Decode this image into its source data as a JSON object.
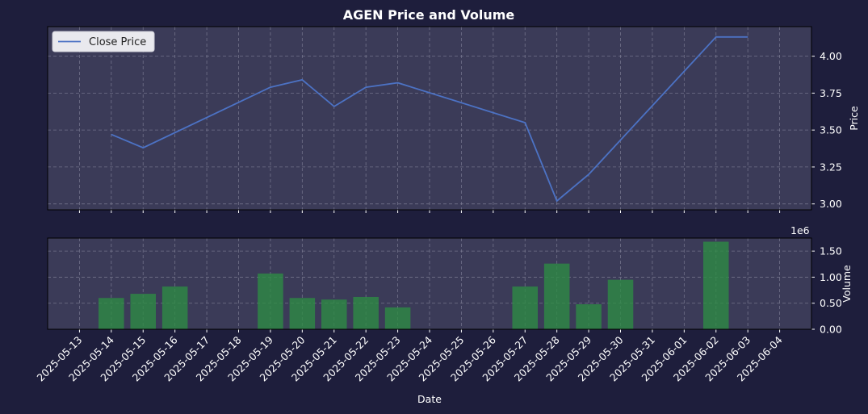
{
  "chart_data": [
    {
      "type": "line",
      "title": "AGEN Price and Volume",
      "ylabel": "Price",
      "ylim": [
        2.96,
        4.2
      ],
      "yticks": [
        3.0,
        3.25,
        3.5,
        3.75,
        4.0
      ],
      "grid": true,
      "legend": {
        "placement": "top-left",
        "entries": [
          "Close Price"
        ]
      },
      "colors": {
        "line": "#4c72c4",
        "panel_bg": "#3b3b58",
        "page_bg": "#1e1e3c"
      },
      "series": [
        {
          "name": "Close Price",
          "x": [
            "2025-05-14",
            "2025-05-15",
            "2025-05-19",
            "2025-05-20",
            "2025-05-21",
            "2025-05-22",
            "2025-05-23",
            "2025-05-27",
            "2025-05-28",
            "2025-05-29",
            "2025-06-02",
            "2025-06-03"
          ],
          "y": [
            3.47,
            3.38,
            3.79,
            3.84,
            3.66,
            3.79,
            3.82,
            3.55,
            3.02,
            3.2,
            4.13,
            4.13
          ]
        }
      ]
    },
    {
      "type": "bar",
      "xlabel": "Date",
      "ylabel": "Volume",
      "scale_label": "1e6",
      "ylim": [
        0,
        1.75
      ],
      "yticks": [
        0.0,
        0.5,
        1.0,
        1.5
      ],
      "grid": true,
      "colors": {
        "bar": "#2e8b45"
      },
      "x": [
        "2025-05-14",
        "2025-05-15",
        "2025-05-16",
        "2025-05-19",
        "2025-05-20",
        "2025-05-21",
        "2025-05-22",
        "2025-05-23",
        "2025-05-27",
        "2025-05-28",
        "2025-05-29",
        "2025-05-30",
        "2025-06-02"
      ],
      "values": [
        0.6,
        0.68,
        0.82,
        1.07,
        0.6,
        0.57,
        0.62,
        0.42,
        0.82,
        1.26,
        0.48,
        0.95,
        1.68
      ]
    }
  ],
  "x_axis": {
    "range": [
      "2025-05-12",
      "2025-06-05"
    ],
    "tick_labels": [
      "2025-05-13",
      "2025-05-14",
      "2025-05-15",
      "2025-05-16",
      "2025-05-17",
      "2025-05-18",
      "2025-05-19",
      "2025-05-20",
      "2025-05-21",
      "2025-05-22",
      "2025-05-23",
      "2025-05-24",
      "2025-05-25",
      "2025-05-26",
      "2025-05-27",
      "2025-05-28",
      "2025-05-29",
      "2025-05-30",
      "2025-05-31",
      "2025-06-01",
      "2025-06-02",
      "2025-06-03",
      "2025-06-04"
    ]
  }
}
